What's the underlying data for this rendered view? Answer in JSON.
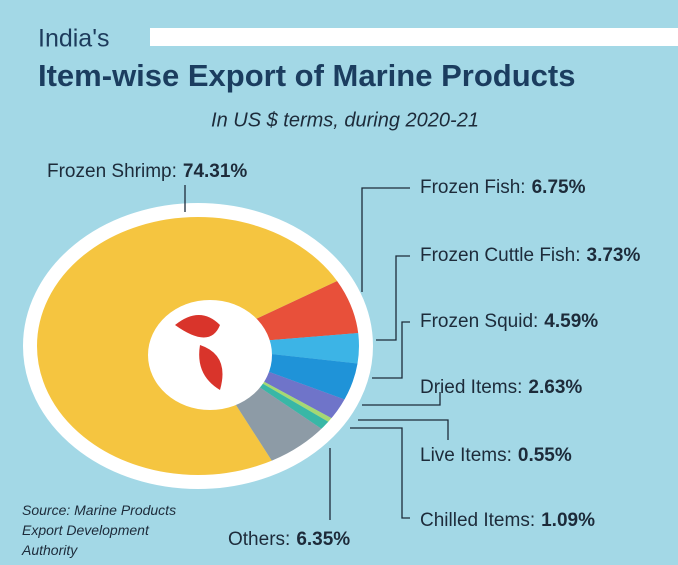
{
  "chart_data": {
    "type": "pie",
    "pretitle": "India's",
    "title": "Item-wise Export of Marine Products",
    "subtitle": "In US $ terms, during 2020-21",
    "source": "Source: Marine Products Export Development Authority",
    "categories": [
      "Frozen Shrimp:",
      "Frozen Fish:",
      "Frozen Cuttle Fish:",
      "Frozen Squid:",
      "Dried Items:",
      "Live Items:",
      "Chilled Items:",
      "Others:"
    ],
    "values": [
      74.31,
      6.75,
      3.73,
      4.59,
      2.63,
      0.55,
      1.09,
      6.35
    ],
    "value_labels": [
      "74.31%",
      "6.75%",
      "3.73%",
      "4.59%",
      "2.63%",
      "0.55%",
      "1.09%",
      "6.35%"
    ],
    "colors": [
      "#f5c540",
      "#e8503a",
      "#3cb4e6",
      "#1f93d8",
      "#6f74c9",
      "#a6d873",
      "#39b7a6",
      "#8d9ba6"
    ]
  }
}
